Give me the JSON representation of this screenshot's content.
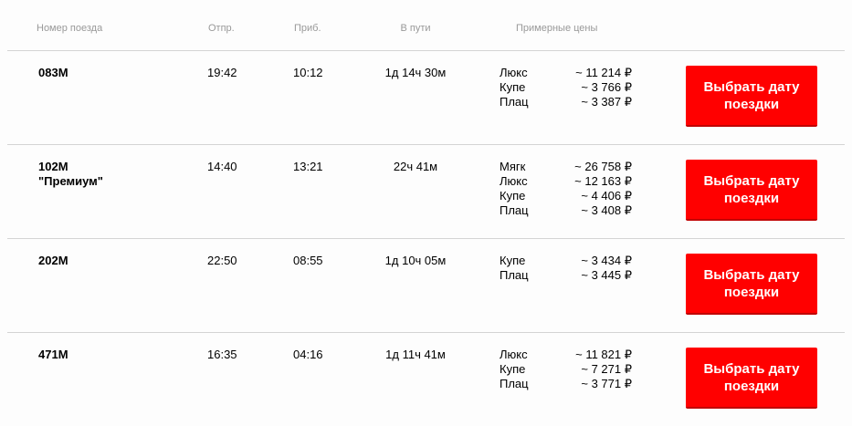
{
  "header": {
    "train": "Номер поезда",
    "departure": "Отпр.",
    "arrival": "Приб.",
    "duration": "В пути",
    "prices": "Примерные цены"
  },
  "accent_color": "#ff0000",
  "trains": [
    {
      "number": "083М",
      "name": "",
      "departure": "19:42",
      "arrival": "10:12",
      "duration": "1д 14ч 30м",
      "prices": [
        {
          "class": "Люкс",
          "price": "~ 11 214 ₽"
        },
        {
          "class": "Купе",
          "price": "~ 3 766 ₽"
        },
        {
          "class": "Плац",
          "price": "~ 3 387 ₽"
        }
      ],
      "button": "Выбрать дату поездки"
    },
    {
      "number": "102М",
      "name": "\"Премиум\"",
      "departure": "14:40",
      "arrival": "13:21",
      "duration": "22ч 41м",
      "prices": [
        {
          "class": "Мягк",
          "price": "~ 26 758 ₽"
        },
        {
          "class": "Люкс",
          "price": "~ 12 163 ₽"
        },
        {
          "class": "Купе",
          "price": "~ 4 406 ₽"
        },
        {
          "class": "Плац",
          "price": "~ 3 408 ₽"
        }
      ],
      "button": "Выбрать дату поездки"
    },
    {
      "number": "202М",
      "name": "",
      "departure": "22:50",
      "arrival": "08:55",
      "duration": "1д 10ч 05м",
      "prices": [
        {
          "class": "Купе",
          "price": "~ 3 434 ₽"
        },
        {
          "class": "Плац",
          "price": "~ 3 445 ₽"
        }
      ],
      "button": "Выбрать дату поездки"
    },
    {
      "number": "471М",
      "name": "",
      "departure": "16:35",
      "arrival": "04:16",
      "duration": "1д 11ч 41м",
      "prices": [
        {
          "class": "Люкс",
          "price": "~ 11 821 ₽"
        },
        {
          "class": "Купе",
          "price": "~ 7 271 ₽"
        },
        {
          "class": "Плац",
          "price": "~ 3 771 ₽"
        }
      ],
      "button": "Выбрать дату поездки"
    }
  ]
}
